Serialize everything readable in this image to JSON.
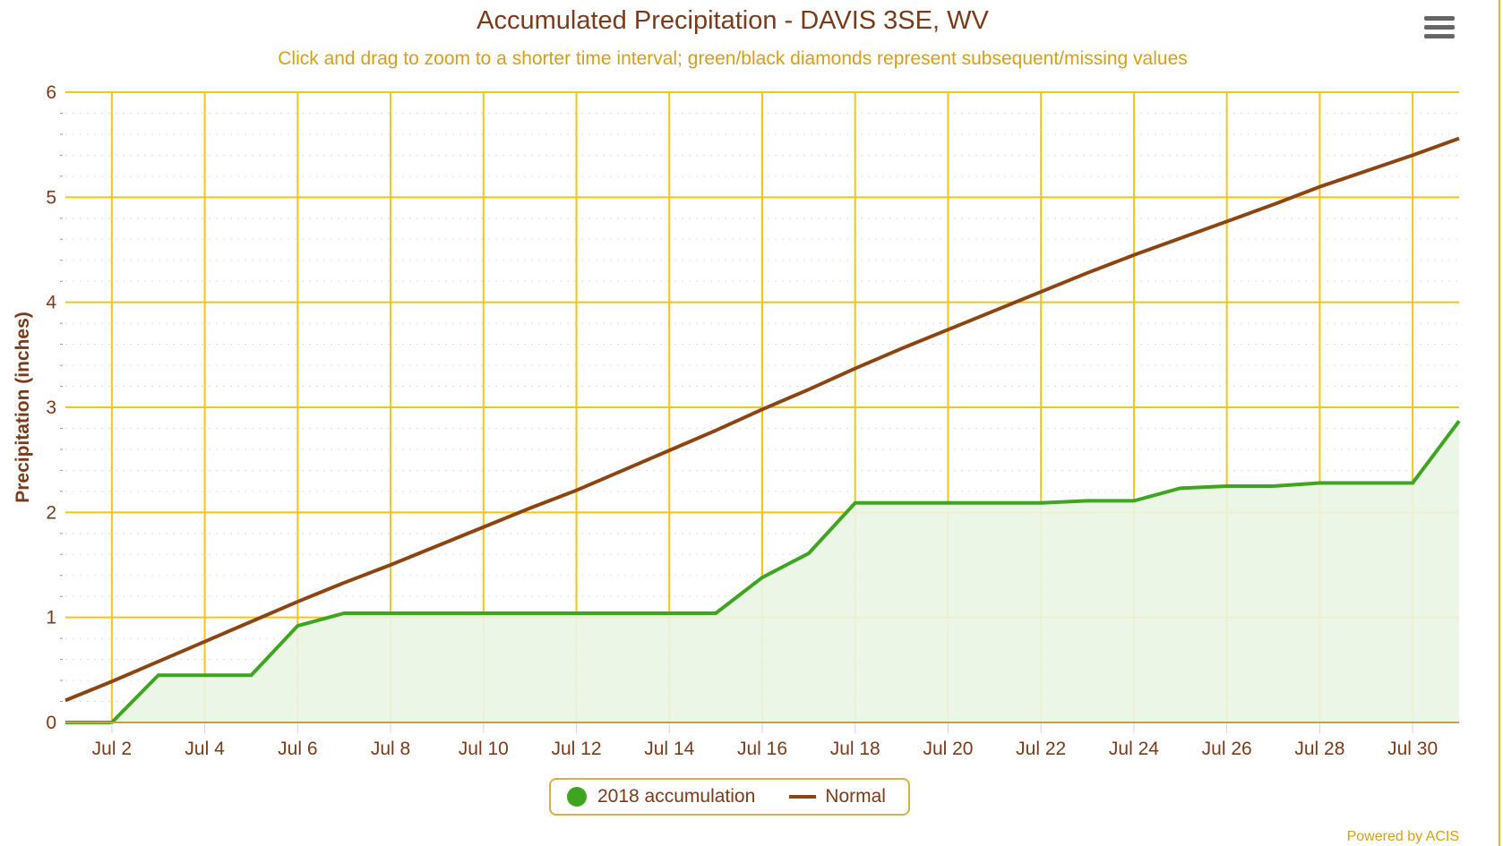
{
  "colors": {
    "accent": "#d4a017",
    "title": "#7a3b1a",
    "grid": "#f5c518",
    "accum": "#3fa420",
    "normal": "#8b4513",
    "fill": "#eaf5e4"
  },
  "menu": {
    "icon": "hamburger-menu-icon"
  },
  "legend": {
    "accum": "2018 accumulation",
    "normal": "Normal"
  },
  "credit": "Powered by ACIS",
  "chart_data": {
    "type": "area",
    "title": "Accumulated Precipitation - DAVIS 3SE, WV",
    "subtitle": "Click and drag to zoom to a shorter time interval; green/black diamonds represent subsequent/missing values",
    "ylabel": "Precipitation (inches)",
    "xlabel": "",
    "ylim": [
      0,
      6
    ],
    "yticks": [
      "0",
      "1",
      "2",
      "3",
      "4",
      "5",
      "6"
    ],
    "xlim": [
      "Jul 1",
      "Jul 31"
    ],
    "xticks": [
      "Jul 2",
      "Jul 4",
      "Jul 6",
      "Jul 8",
      "Jul 10",
      "Jul 12",
      "Jul 14",
      "Jul 16",
      "Jul 18",
      "Jul 20",
      "Jul 22",
      "Jul 24",
      "Jul 26",
      "Jul 28",
      "Jul 30"
    ],
    "grid": true,
    "legend_position": "bottom",
    "x": [
      1,
      2,
      3,
      4,
      5,
      6,
      7,
      8,
      9,
      10,
      11,
      12,
      13,
      14,
      15,
      16,
      17,
      18,
      19,
      20,
      21,
      22,
      23,
      24,
      25,
      26,
      27,
      28,
      29,
      30,
      31
    ],
    "series": [
      {
        "name": "2018 accumulation",
        "type": "area",
        "values": [
          0,
          0,
          0.45,
          0.45,
          0.45,
          0.92,
          1.04,
          1.04,
          1.04,
          1.04,
          1.04,
          1.04,
          1.04,
          1.04,
          1.04,
          1.38,
          1.61,
          2.09,
          2.09,
          2.09,
          2.09,
          2.09,
          2.11,
          2.11,
          2.23,
          2.25,
          2.25,
          2.28,
          2.28,
          2.28,
          2.87
        ]
      },
      {
        "name": "Normal",
        "type": "line",
        "values": [
          0.21,
          0.39,
          0.58,
          0.77,
          0.96,
          1.15,
          1.33,
          1.5,
          1.68,
          1.86,
          2.04,
          2.21,
          2.4,
          2.59,
          2.78,
          2.98,
          3.17,
          3.37,
          3.56,
          3.74,
          3.92,
          4.1,
          4.28,
          4.45,
          4.61,
          4.77,
          4.93,
          5.1,
          5.25,
          5.4,
          5.56
        ]
      }
    ]
  }
}
